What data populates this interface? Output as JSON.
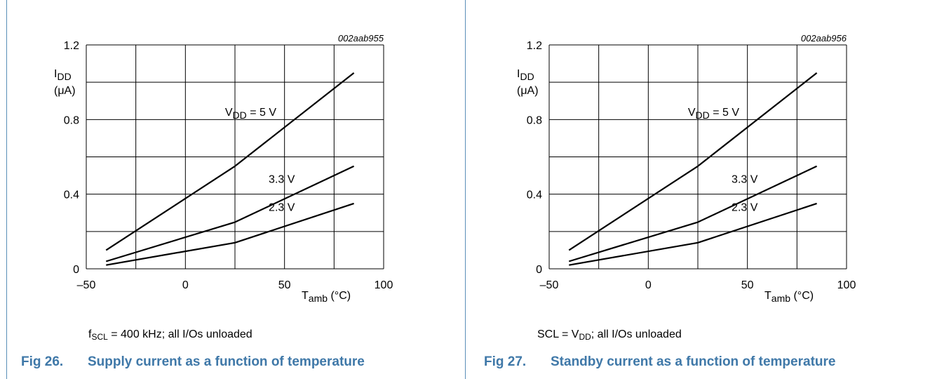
{
  "figures": [
    {
      "number_label": "Fig 26.",
      "title": "Supply current as a function of temperature",
      "note_parts": [
        "f",
        "SCL",
        " = 400 kHz; all I/Os unloaded"
      ]
    },
    {
      "number_label": "Fig 27.",
      "title": "Standby current as a function of temperature",
      "note_parts": [
        "SCL = V",
        "DD",
        "; all I/Os unloaded"
      ]
    }
  ],
  "chart_data": [
    {
      "type": "line",
      "code": "002aab955",
      "ylabel_main": "I",
      "ylabel_sub": "DD",
      "ylabel_unit": "(μA)",
      "xlabel_main": "T",
      "xlabel_sub": "amb",
      "xlabel_unit": " (°C)",
      "xlim": [
        -50,
        100
      ],
      "ylim": [
        0,
        1.2
      ],
      "xticks": [
        "–50",
        "0",
        "50",
        "100"
      ],
      "yticks": [
        "0",
        "0.4",
        "0.8",
        "1.2"
      ],
      "grid": true,
      "series": [
        {
          "label_main": "V",
          "label_sub": "DD",
          "label_rest": " = 5 V",
          "x": [
            -40,
            25,
            85
          ],
          "y": [
            0.1,
            0.55,
            1.05
          ]
        },
        {
          "label_main": "3.3 V",
          "label_sub": "",
          "label_rest": "",
          "x": [
            -40,
            25,
            85
          ],
          "y": [
            0.04,
            0.25,
            0.55
          ]
        },
        {
          "label_main": "2.3 V",
          "label_sub": "",
          "label_rest": "",
          "x": [
            -40,
            25,
            85
          ],
          "y": [
            0.02,
            0.14,
            0.35
          ]
        }
      ]
    },
    {
      "type": "line",
      "code": "002aab956",
      "ylabel_main": "I",
      "ylabel_sub": "DD",
      "ylabel_unit": "(μA)",
      "xlabel_main": "T",
      "xlabel_sub": "amb",
      "xlabel_unit": " (°C)",
      "xlim": [
        -50,
        100
      ],
      "ylim": [
        0,
        1.2
      ],
      "xticks": [
        "–50",
        "0",
        "50",
        "100"
      ],
      "yticks": [
        "0",
        "0.4",
        "0.8",
        "1.2"
      ],
      "grid": true,
      "series": [
        {
          "label_main": "V",
          "label_sub": "DD",
          "label_rest": " = 5 V",
          "x": [
            -40,
            25,
            85
          ],
          "y": [
            0.1,
            0.55,
            1.05
          ]
        },
        {
          "label_main": "3.3 V",
          "label_sub": "",
          "label_rest": "",
          "x": [
            -40,
            25,
            85
          ],
          "y": [
            0.04,
            0.25,
            0.55
          ]
        },
        {
          "label_main": "2.3 V",
          "label_sub": "",
          "label_rest": "",
          "x": [
            -40,
            25,
            85
          ],
          "y": [
            0.02,
            0.14,
            0.35
          ]
        }
      ]
    }
  ]
}
